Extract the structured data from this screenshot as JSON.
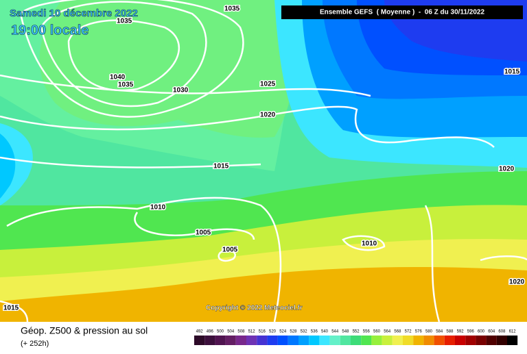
{
  "header": {
    "date": "Samedi 10 décembre 2022",
    "time": "19:00 locale",
    "run": "Ensemble GEFS  ( Moyenne )  -  06 Z du 30/11/2022"
  },
  "isobar_labels": [
    "1035",
    "1035",
    "1040",
    "1035",
    "1030",
    "1025",
    "1020",
    "1015",
    "1010",
    "1005",
    "1005",
    "1010",
    "1015",
    "1020",
    "1020",
    "1015"
  ],
  "copyright": "Copyright © 2022 Meteociel.fr",
  "footer": {
    "title": "Géop. Z500 & pression au sol",
    "lead": "(+ 252h)"
  },
  "scale": {
    "labels": [
      "492",
      "496",
      "500",
      "504",
      "508",
      "512",
      "516",
      "520",
      "524",
      "528",
      "532",
      "536",
      "540",
      "544",
      "548",
      "552",
      "556",
      "560",
      "564",
      "568",
      "572",
      "576",
      "580",
      "584",
      "588",
      "592",
      "596",
      "600",
      "604",
      "608",
      "612"
    ],
    "colors": [
      "#2d0a28",
      "#3c0f3c",
      "#501450",
      "#641e64",
      "#78288c",
      "#6e32b4",
      "#4632d2",
      "#1e3cf0",
      "#0050ff",
      "#0078ff",
      "#00a0ff",
      "#00c8ff",
      "#3ce6ff",
      "#64f0c8",
      "#50e6a0",
      "#3cdc78",
      "#50e650",
      "#96f03c",
      "#c8f03c",
      "#f0f050",
      "#f0dc28",
      "#f0b400",
      "#f08c00",
      "#f05000",
      "#e61e00",
      "#c80000",
      "#a00000",
      "#780000",
      "#500000",
      "#320000",
      "#000000"
    ]
  }
}
